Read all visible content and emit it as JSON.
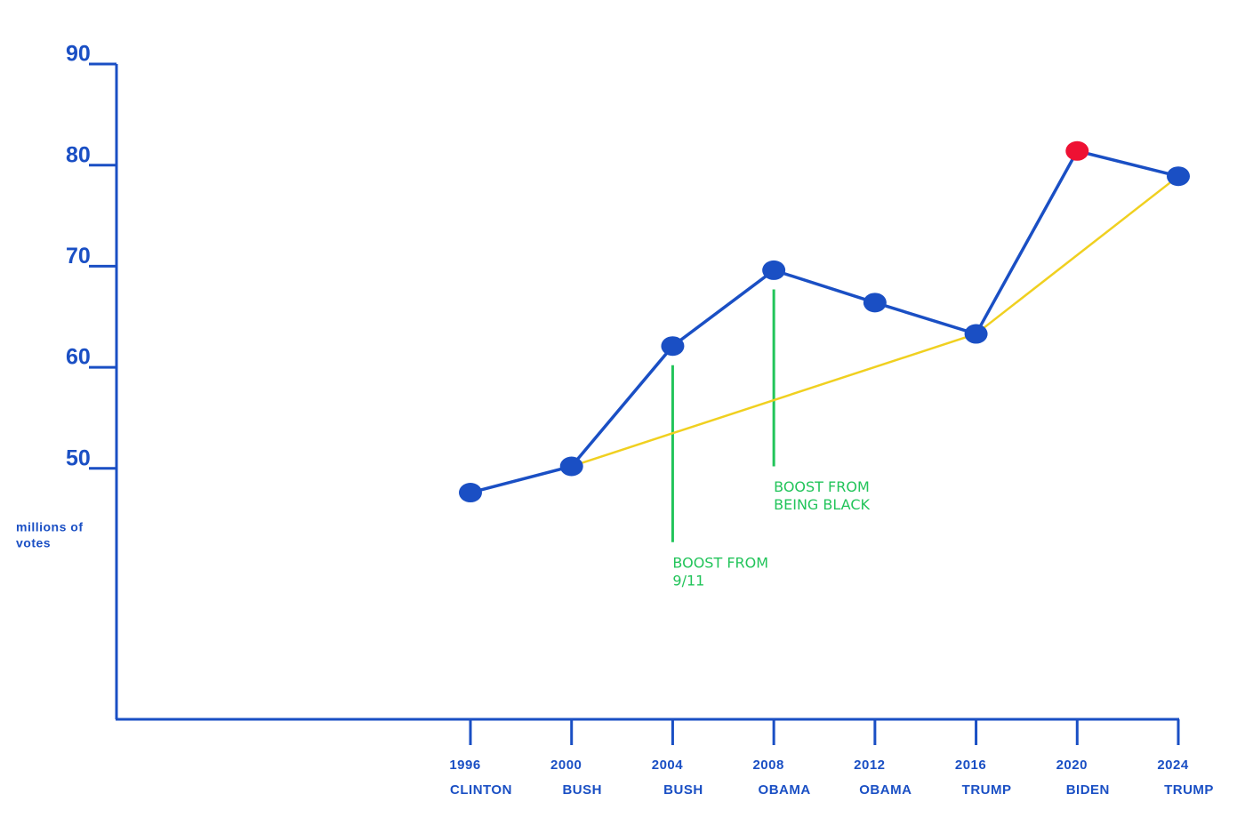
{
  "chart_data": {
    "type": "line",
    "y_label": [
      "millions of",
      "votes"
    ],
    "x": [
      1996,
      2000,
      2004,
      2008,
      2012,
      2016,
      2020,
      2024
    ],
    "names": [
      "CLINTON",
      "BUSH",
      "BUSH",
      "OBAMA",
      "OBAMA",
      "TRUMP",
      "BIDEN",
      "TRUMP"
    ],
    "xlim": [
      1982,
      2024
    ],
    "ylim": [
      25,
      90
    ],
    "yticks": [
      50,
      60,
      70,
      80,
      90
    ],
    "axis_color": "#1a4fc4",
    "series": [
      {
        "color": "#1a4fc4",
        "marker_colors": [
          "#1a4fc4",
          "#1a4fc4",
          "#1a4fc4",
          "#1a4fc4",
          "#1a4fc4",
          "#1a4fc4",
          "#ee1133",
          "#1a4fc4"
        ],
        "values": [
          47.6,
          50.2,
          62.1,
          69.6,
          66.4,
          63.3,
          81.4,
          78.9
        ]
      },
      {
        "color": "#f0d020",
        "x": [
          2000,
          2016,
          2024
        ],
        "values": [
          50.2,
          63.3,
          78.9
        ]
      }
    ],
    "annotations": [
      {
        "text": [
          "BOOST FROM",
          "9/11"
        ],
        "x": 2004,
        "y": [
          60.2,
          42.7
        ],
        "color": "#22c45a"
      },
      {
        "text": [
          "BOOST FROM",
          "BEING BLACK"
        ],
        "x": 2008,
        "y": [
          67.7,
          50.2
        ],
        "color": "#22c45a"
      }
    ]
  }
}
